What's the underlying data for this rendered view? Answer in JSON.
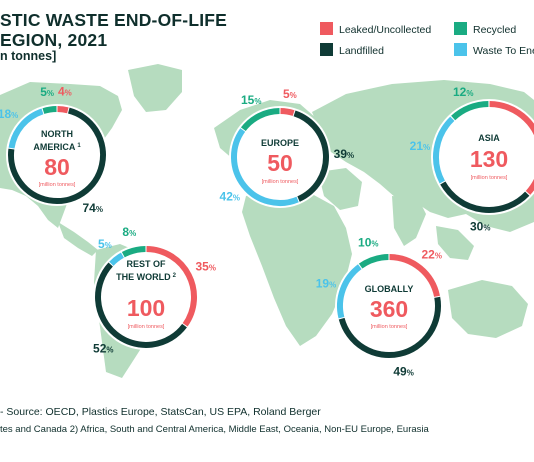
{
  "title_lines": [
    "STIC WASTE END-OF-LIFE",
    "EGION, 2021"
  ],
  "subtitle": "n tonnes]",
  "source_text": "- Source: OECD, Plastics Europe, StatsCan, US EPA, Roland Berger",
  "footnote_text": "tes and Canada   2) Africa, South and Central America, Middle East, Oceania, Non-EU Europe, Eurasia",
  "colors": {
    "leaked": "#ef5a5f",
    "recycled": "#1aab82",
    "landfilled": "#0f3b36",
    "waste_to_energy": "#4bc3ea",
    "map": "#b6dcbf",
    "label": "#0f3b36",
    "highlight": "#ef5a5f"
  },
  "legend": [
    {
      "label": "Leaked/Uncollected",
      "color": "#ef5a5f"
    },
    {
      "label": "Recycled",
      "color": "#1aab82"
    },
    {
      "label": "Landfilled",
      "color": "#0f3b36"
    },
    {
      "label": "Waste To Ener",
      "color": "#4bc3ea"
    }
  ],
  "chart_data": {
    "type": "donut",
    "series_order": [
      "Leaked/Uncollected",
      "Landfilled",
      "Waste To Ener",
      "Recycled"
    ],
    "regions": [
      {
        "name_lines": [
          "NORTH",
          "AMERICA"
        ],
        "footnote_mark": "1",
        "total": 80,
        "unit": "[million tonnes]",
        "values": {
          "Leaked/Uncollected": 4,
          "Landfilled": 74,
          "Waste To Ener": 18,
          "Recycled": 5
        },
        "labels": {
          "Leaked/Uncollected": "4",
          "Landfilled": "74",
          "Waste To Ener": "18",
          "Recycled": "5"
        }
      },
      {
        "name_lines": [
          "EUROPE"
        ],
        "footnote_mark": "",
        "total": 50,
        "unit": "[million tonnes]",
        "values": {
          "Leaked/Uncollected": 5,
          "Landfilled": 39,
          "Waste To Ener": 42,
          "Recycled": 15
        },
        "labels": {
          "Leaked/Uncollected": "5",
          "Landfilled": "39",
          "Waste To Ener": "42",
          "Recycled": "15"
        }
      },
      {
        "name_lines": [
          "ASIA"
        ],
        "footnote_mark": "",
        "total": 130,
        "unit": "[million tonnes]",
        "values": {
          "Leaked/Uncollected": 37,
          "Landfilled": 30,
          "Waste To Ener": 21,
          "Recycled": 12
        },
        "labels": {
          "Landfilled": "30",
          "Waste To Ener": "21",
          "Recycled": "12"
        }
      },
      {
        "name_lines": [
          "REST OF",
          "THE WORLD"
        ],
        "footnote_mark": "2",
        "total": 100,
        "unit": "[million tonnes]",
        "values": {
          "Leaked/Uncollected": 35,
          "Landfilled": 52,
          "Waste To Ener": 5,
          "Recycled": 8
        },
        "labels": {
          "Leaked/Uncollected": "35",
          "Landfilled": "52",
          "Waste To Ener": "5",
          "Recycled": "8"
        }
      },
      {
        "name_lines": [
          "GLOBALLY"
        ],
        "footnote_mark": "",
        "total": 360,
        "unit": "[million tonnes]",
        "values": {
          "Leaked/Uncollected": 22,
          "Landfilled": 49,
          "Waste To Ener": 19,
          "Recycled": 10
        },
        "labels": {
          "Leaked/Uncollected": "22",
          "Landfilled": "49",
          "Waste To Ener": "19",
          "Recycled": "10"
        }
      }
    ]
  }
}
